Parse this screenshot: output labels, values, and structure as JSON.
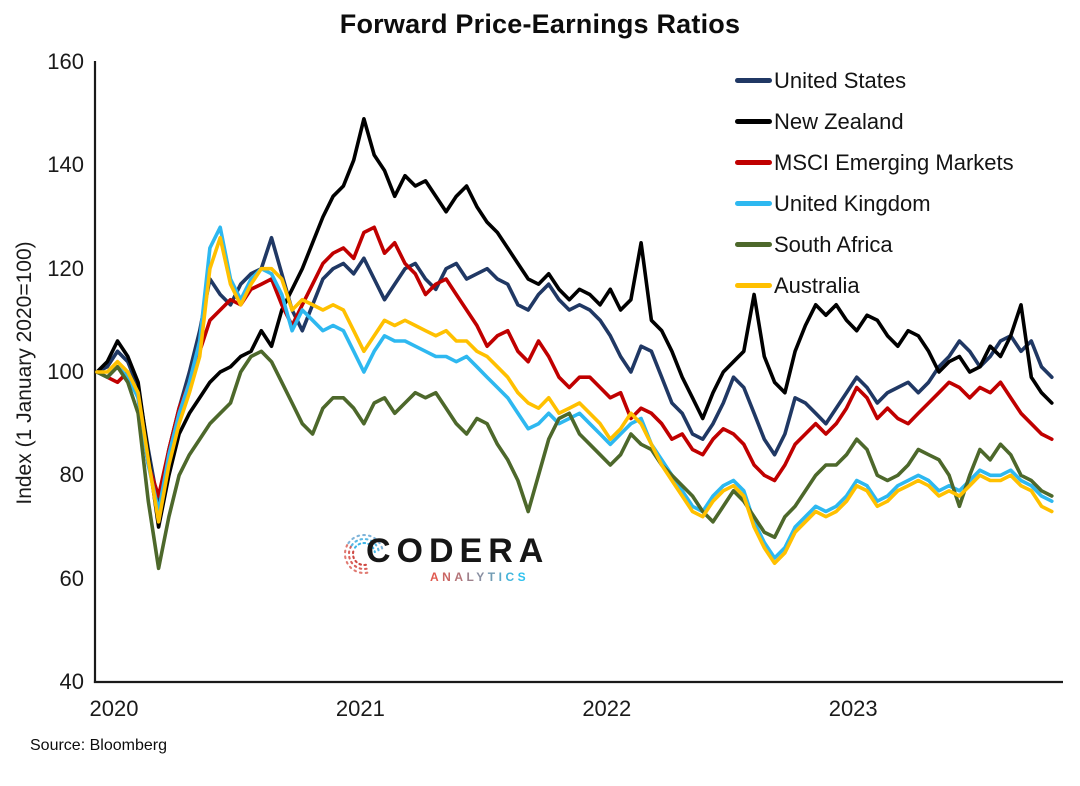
{
  "title": "Forward Price-Earnings Ratios",
  "source": "Source: Bloomberg",
  "logo": {
    "brand": "CODERA",
    "sub": "ANALYTICS"
  },
  "y_axis": {
    "title": "Index (1 January 2020=100)"
  },
  "legend_position": "top-right",
  "chart_data": {
    "type": "line",
    "title": "Forward Price-Earnings Ratios",
    "xlabel": "",
    "ylabel": "Index (1 January 2020=100)",
    "ylim": [
      40,
      160
    ],
    "yticks": [
      40,
      60,
      80,
      100,
      120,
      140,
      160
    ],
    "x_categories": [
      "2020",
      "2021",
      "2022",
      "2023"
    ],
    "grid": false,
    "x_start_year": 2020,
    "x_step_years": 0.0416667,
    "series": [
      {
        "name": "United States",
        "color": "#203864",
        "values": [
          100,
          101,
          104,
          102,
          97,
          85,
          74,
          85,
          93,
          100,
          108,
          118,
          115,
          113,
          117,
          119,
          120,
          126,
          119,
          112,
          108,
          113,
          118,
          120,
          121,
          119,
          122,
          118,
          114,
          117,
          120,
          121,
          118,
          116,
          120,
          121,
          118,
          119,
          120,
          118,
          117,
          113,
          112,
          115,
          117,
          114,
          112,
          113,
          112,
          110,
          107,
          103,
          100,
          105,
          104,
          99,
          94,
          92,
          88,
          87,
          90,
          94,
          99,
          97,
          92,
          87,
          84,
          88,
          95,
          94,
          92,
          90,
          93,
          96,
          99,
          97,
          94,
          96,
          97,
          98,
          96,
          98,
          101,
          103,
          106,
          104,
          101,
          103,
          106,
          107,
          104,
          106,
          101,
          99
        ]
      },
      {
        "name": "New Zealand",
        "color": "#000000",
        "values": [
          100,
          102,
          106,
          103,
          98,
          84,
          70,
          80,
          88,
          92,
          95,
          98,
          100,
          101,
          103,
          104,
          108,
          105,
          112,
          116,
          120,
          125,
          130,
          134,
          136,
          141,
          149,
          142,
          139,
          134,
          138,
          136,
          137,
          134,
          131,
          134,
          136,
          132,
          129,
          127,
          124,
          121,
          118,
          117,
          119,
          116,
          114,
          116,
          115,
          113,
          116,
          112,
          114,
          125,
          110,
          108,
          104,
          99,
          95,
          91,
          96,
          100,
          102,
          104,
          115,
          103,
          98,
          96,
          104,
          109,
          113,
          111,
          113,
          110,
          108,
          111,
          110,
          107,
          105,
          108,
          107,
          104,
          100,
          102,
          103,
          100,
          101,
          105,
          103,
          107,
          113,
          99,
          96,
          94
        ]
      },
      {
        "name": "MSCI Emerging Markets",
        "color": "#c00000",
        "values": [
          100,
          99,
          98,
          100,
          95,
          82,
          76,
          85,
          93,
          98,
          104,
          110,
          112,
          114,
          113,
          116,
          117,
          118,
          113,
          109,
          113,
          117,
          121,
          123,
          124,
          122,
          127,
          128,
          123,
          125,
          121,
          119,
          115,
          117,
          118,
          115,
          112,
          109,
          105,
          107,
          108,
          104,
          102,
          106,
          103,
          99,
          97,
          99,
          99,
          97,
          95,
          96,
          91,
          93,
          92,
          90,
          87,
          88,
          85,
          84,
          87,
          89,
          88,
          86,
          82,
          80,
          79,
          82,
          86,
          88,
          90,
          88,
          90,
          93,
          97,
          95,
          91,
          93,
          91,
          90,
          92,
          94,
          96,
          98,
          97,
          95,
          97,
          96,
          98,
          95,
          92,
          90,
          88,
          87
        ]
      },
      {
        "name": "United Kingdom",
        "color": "#2eb8f0",
        "values": [
          100,
          99,
          101,
          99,
          95,
          82,
          73,
          84,
          92,
          98,
          106,
          124,
          128,
          118,
          114,
          118,
          120,
          119,
          115,
          108,
          112,
          110,
          108,
          109,
          108,
          104,
          100,
          104,
          107,
          106,
          106,
          105,
          104,
          103,
          103,
          102,
          103,
          101,
          99,
          97,
          95,
          92,
          89,
          90,
          92,
          90,
          91,
          92,
          90,
          88,
          86,
          88,
          90,
          91,
          86,
          83,
          80,
          77,
          74,
          73,
          76,
          78,
          79,
          77,
          71,
          67,
          64,
          66,
          70,
          72,
          74,
          73,
          74,
          76,
          79,
          78,
          75,
          76,
          78,
          79,
          80,
          79,
          77,
          78,
          77,
          79,
          81,
          80,
          80,
          81,
          79,
          78,
          76,
          75
        ]
      },
      {
        "name": "South Africa",
        "color": "#4d682b",
        "values": [
          100,
          99,
          101,
          98,
          92,
          75,
          62,
          72,
          80,
          84,
          87,
          90,
          92,
          94,
          100,
          103,
          104,
          102,
          98,
          94,
          90,
          88,
          93,
          95,
          95,
          93,
          90,
          94,
          95,
          92,
          94,
          96,
          95,
          96,
          93,
          90,
          88,
          91,
          90,
          86,
          83,
          79,
          73,
          80,
          87,
          91,
          92,
          88,
          86,
          84,
          82,
          84,
          88,
          86,
          85,
          82,
          80,
          78,
          76,
          73,
          71,
          74,
          77,
          75,
          72,
          69,
          68,
          72,
          74,
          77,
          80,
          82,
          82,
          84,
          87,
          85,
          80,
          79,
          80,
          82,
          85,
          84,
          83,
          80,
          74,
          80,
          85,
          83,
          86,
          84,
          80,
          79,
          77,
          76
        ]
      },
      {
        "name": "Australia",
        "color": "#ffc000",
        "values": [
          100,
          100,
          102,
          100,
          96,
          83,
          71,
          82,
          90,
          96,
          103,
          120,
          126,
          117,
          113,
          117,
          120,
          120,
          118,
          112,
          114,
          113,
          112,
          113,
          112,
          108,
          104,
          107,
          110,
          109,
          110,
          109,
          108,
          107,
          108,
          106,
          106,
          104,
          103,
          101,
          99,
          96,
          94,
          93,
          95,
          92,
          93,
          94,
          92,
          90,
          87,
          89,
          92,
          90,
          86,
          82,
          79,
          76,
          73,
          72,
          75,
          77,
          78,
          76,
          70,
          66,
          63,
          65,
          69,
          71,
          73,
          72,
          73,
          75,
          78,
          77,
          74,
          75,
          77,
          78,
          79,
          78,
          76,
          77,
          76,
          78,
          80,
          79,
          79,
          80,
          78,
          77,
          74,
          73
        ]
      }
    ]
  }
}
